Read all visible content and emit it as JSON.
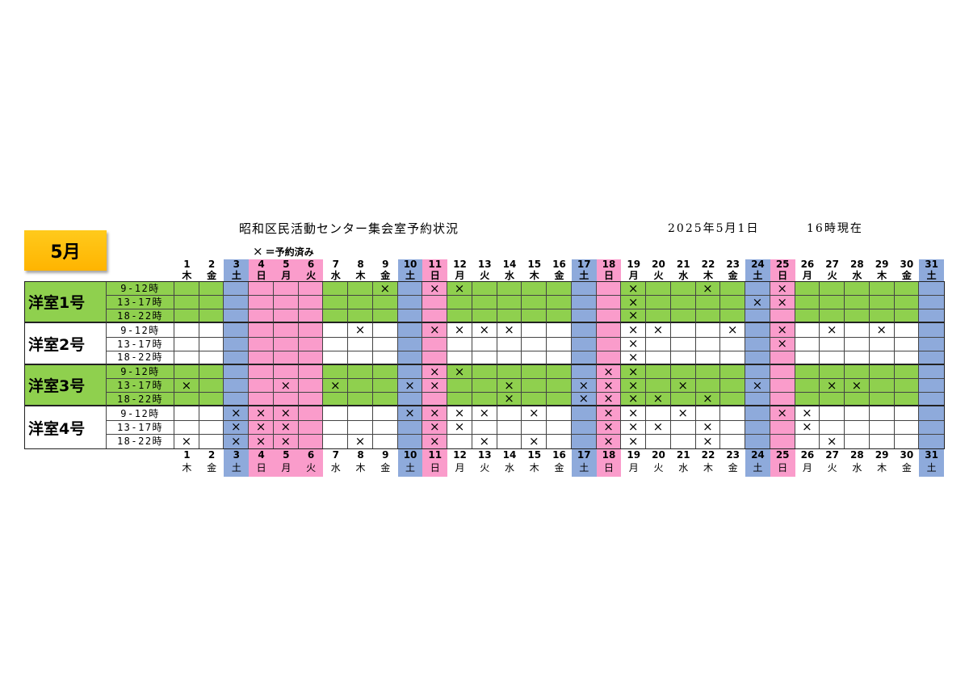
{
  "header": {
    "title": "昭和区民活動センター集会室予約状況",
    "date": "2025年5月1日",
    "as_of": "16時現在"
  },
  "month_badge": {
    "label": "5月",
    "color": "#ffc000"
  },
  "legend": {
    "mark": "×",
    "text": "＝予約済み"
  },
  "days": [
    {
      "day": "1",
      "weekday": "木"
    },
    {
      "day": "2",
      "weekday": "金"
    },
    {
      "day": "3",
      "weekday": "土",
      "bg": "#8eaadb"
    },
    {
      "day": "4",
      "weekday": "日",
      "bg": "#fa9ccb"
    },
    {
      "day": "5",
      "weekday": "月",
      "bg": "#fa9ccb"
    },
    {
      "day": "6",
      "weekday": "火",
      "bg": "#fa9ccb"
    },
    {
      "day": "7",
      "weekday": "水"
    },
    {
      "day": "8",
      "weekday": "木"
    },
    {
      "day": "9",
      "weekday": "金"
    },
    {
      "day": "10",
      "weekday": "土",
      "bg": "#8eaadb"
    },
    {
      "day": "11",
      "weekday": "日",
      "bg": "#fa9ccb"
    },
    {
      "day": "12",
      "weekday": "月"
    },
    {
      "day": "13",
      "weekday": "火"
    },
    {
      "day": "14",
      "weekday": "水"
    },
    {
      "day": "15",
      "weekday": "木"
    },
    {
      "day": "16",
      "weekday": "金"
    },
    {
      "day": "17",
      "weekday": "土",
      "bg": "#8eaadb"
    },
    {
      "day": "18",
      "weekday": "日",
      "bg": "#fa9ccb"
    },
    {
      "day": "19",
      "weekday": "月"
    },
    {
      "day": "20",
      "weekday": "火"
    },
    {
      "day": "21",
      "weekday": "水"
    },
    {
      "day": "22",
      "weekday": "木"
    },
    {
      "day": "23",
      "weekday": "金"
    },
    {
      "day": "24",
      "weekday": "土",
      "bg": "#8eaadb"
    },
    {
      "day": "25",
      "weekday": "日",
      "bg": "#fa9ccb"
    },
    {
      "day": "26",
      "weekday": "月"
    },
    {
      "day": "27",
      "weekday": "火"
    },
    {
      "day": "28",
      "weekday": "水"
    },
    {
      "day": "29",
      "weekday": "木"
    },
    {
      "day": "30",
      "weekday": "金"
    },
    {
      "day": "31",
      "weekday": "土",
      "bg": "#8eaadb"
    }
  ],
  "rooms": [
    {
      "name": "洋室1号",
      "bg": "#8fd04e",
      "slots": [
        {
          "label": "9-12時",
          "reserved": [
            9,
            11,
            12,
            19,
            22,
            25
          ]
        },
        {
          "label": "13-17時",
          "reserved": [
            19,
            24,
            25
          ]
        },
        {
          "label": "18-22時",
          "reserved": [
            19
          ]
        }
      ]
    },
    {
      "name": "洋室2号",
      "bg": "#ffffff",
      "slots": [
        {
          "label": "9-12時",
          "reserved": [
            8,
            11,
            12,
            13,
            14,
            19,
            20,
            23,
            25,
            27,
            29
          ]
        },
        {
          "label": "13-17時",
          "reserved": [
            19,
            25
          ]
        },
        {
          "label": "18-22時",
          "reserved": [
            19
          ]
        }
      ]
    },
    {
      "name": "洋室3号",
      "bg": "#8fd04e",
      "slots": [
        {
          "label": "9-12時",
          "reserved": [
            11,
            12,
            18,
            19
          ]
        },
        {
          "label": "13-17時",
          "reserved": [
            1,
            5,
            7,
            10,
            11,
            14,
            17,
            18,
            19,
            21,
            24,
            27,
            28
          ]
        },
        {
          "label": "18-22時",
          "reserved": [
            14,
            17,
            18,
            19,
            20,
            22
          ]
        }
      ]
    },
    {
      "name": "洋室4号",
      "bg": "#ffffff",
      "slots": [
        {
          "label": "9-12時",
          "reserved": [
            3,
            4,
            5,
            10,
            11,
            12,
            13,
            15,
            18,
            19,
            21,
            25,
            26
          ]
        },
        {
          "label": "13-17時",
          "reserved": [
            3,
            4,
            5,
            11,
            12,
            18,
            19,
            20,
            22,
            26
          ]
        },
        {
          "label": "18-22時",
          "reserved": [
            1,
            3,
            4,
            5,
            8,
            11,
            13,
            15,
            18,
            19,
            22,
            27
          ]
        }
      ]
    }
  ]
}
